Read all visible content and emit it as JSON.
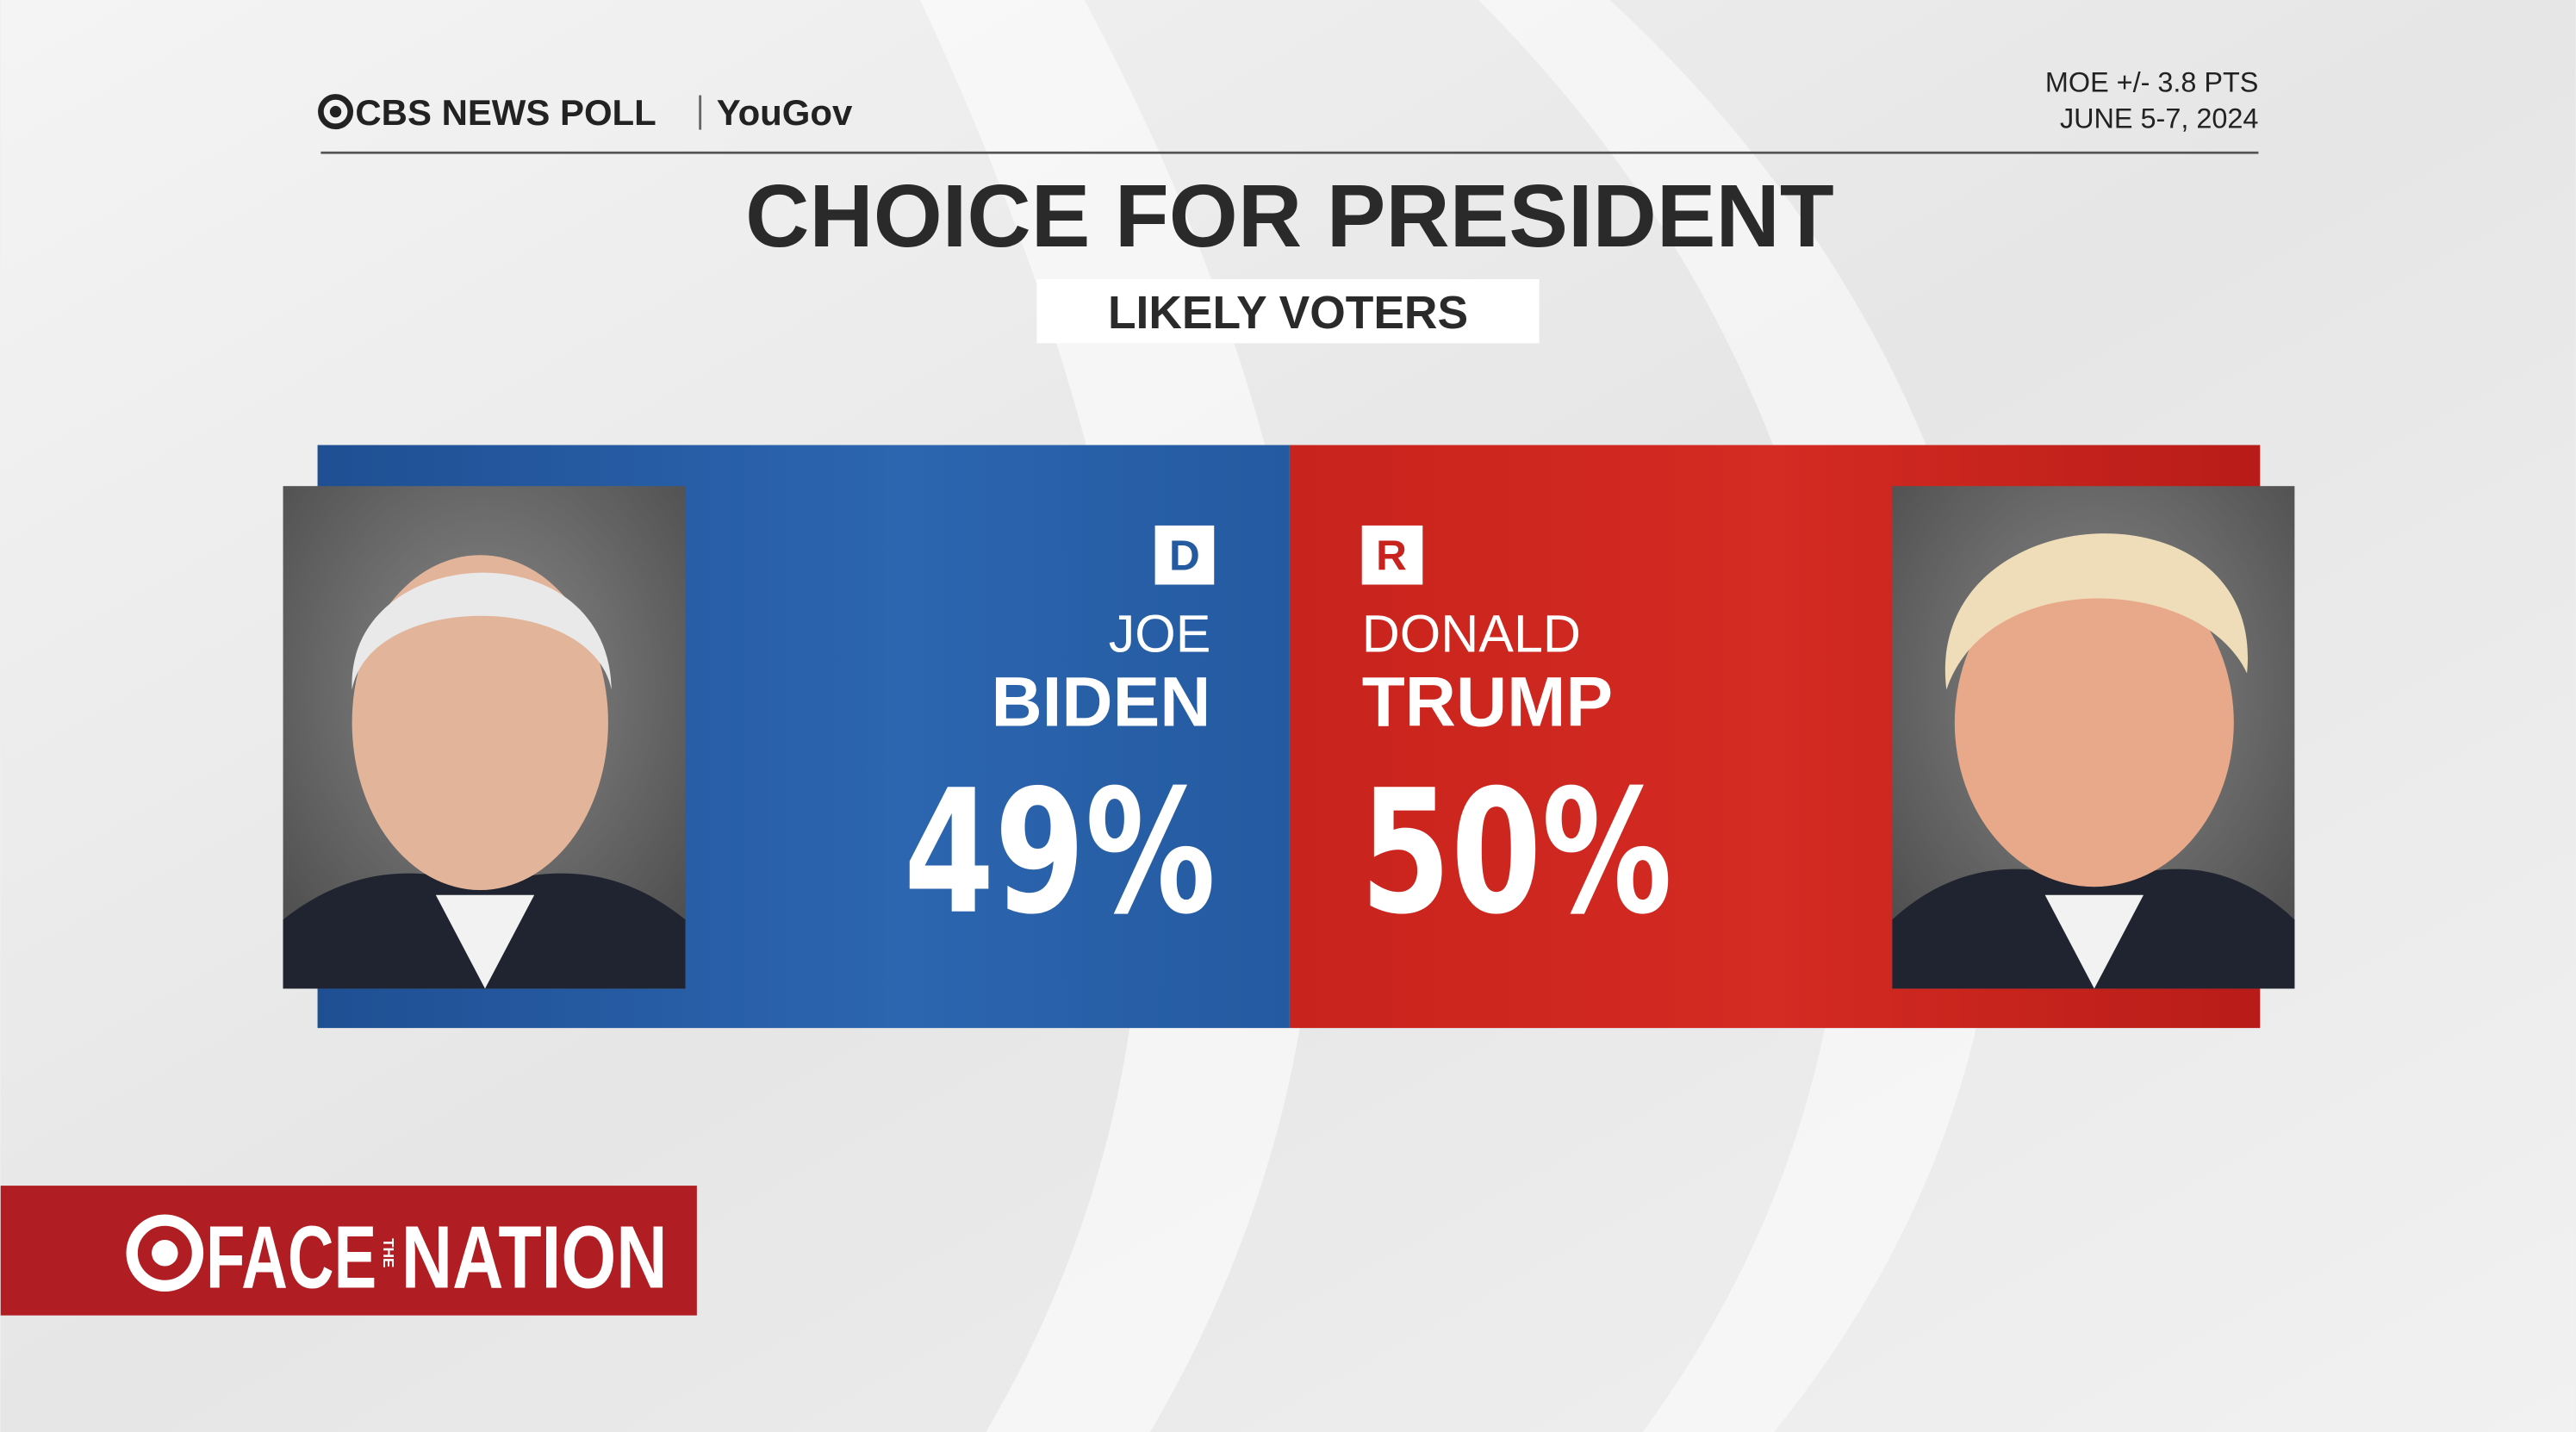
{
  "header": {
    "source": "CBS NEWS POLL",
    "partner": "YouGov",
    "moe": "MOE +/- 3.8 PTS",
    "dates": "JUNE 5-7, 2024"
  },
  "title": "CHOICE FOR PRESIDENT",
  "subtitle": "LIKELY VOTERS",
  "candidates": [
    {
      "party": "D",
      "first_name": "JOE",
      "last_name": "BIDEN",
      "share": "49%"
    },
    {
      "party": "R",
      "first_name": "DONALD",
      "last_name": "TRUMP",
      "share": "50%"
    }
  ],
  "show": {
    "word1": "FACE",
    "word2": "THE",
    "word3": "NATION"
  }
}
